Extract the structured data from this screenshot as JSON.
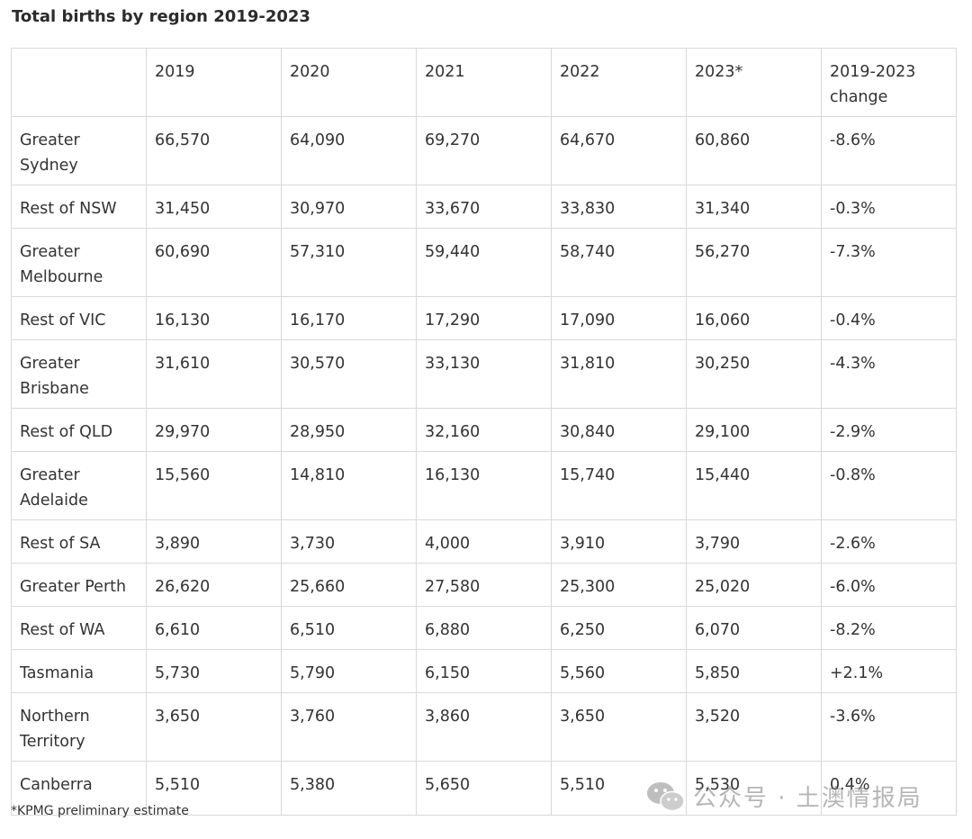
{
  "title": "Total births by region 2019-2023",
  "table": {
    "headers": [
      "",
      "2019",
      "2020",
      "2021",
      "2022",
      "2023*",
      "2019-2023 change"
    ],
    "rows": [
      [
        "Greater Sydney",
        "66,570",
        "64,090",
        "69,270",
        "64,670",
        "60,860",
        "-8.6%"
      ],
      [
        "Rest of NSW",
        "31,450",
        "30,970",
        "33,670",
        "33,830",
        "31,340",
        "-0.3%"
      ],
      [
        "Greater Melbourne",
        "60,690",
        "57,310",
        "59,440",
        "58,740",
        "56,270",
        "-7.3%"
      ],
      [
        "Rest of VIC",
        "16,130",
        "16,170",
        "17,290",
        "17,090",
        "16,060",
        "-0.4%"
      ],
      [
        "Greater Brisbane",
        "31,610",
        "30,570",
        "33,130",
        "31,810",
        "30,250",
        "-4.3%"
      ],
      [
        "Rest of QLD",
        "29,970",
        "28,950",
        "32,160",
        "30,840",
        "29,100",
        "-2.9%"
      ],
      [
        "Greater Adelaide",
        "15,560",
        "14,810",
        "16,130",
        "15,740",
        "15,440",
        "-0.8%"
      ],
      [
        "Rest of SA",
        "3,890",
        "3,730",
        "4,000",
        "3,910",
        "3,790",
        "-2.6%"
      ],
      [
        "Greater Perth",
        "26,620",
        "25,660",
        "27,580",
        "25,300",
        "25,020",
        "-6.0%"
      ],
      [
        "Rest of WA",
        "6,610",
        "6,510",
        "6,880",
        "6,250",
        "6,070",
        "-8.2%"
      ],
      [
        "Tasmania",
        "5,730",
        "5,790",
        "6,150",
        "5,560",
        "5,850",
        "+2.1%"
      ],
      [
        "Northern Territory",
        "3,650",
        "3,760",
        "3,860",
        "3,650",
        "3,520",
        "-3.6%"
      ],
      [
        "Canberra",
        "5,510",
        "5,380",
        "5,650",
        "5,510",
        "5,530",
        "0.4%"
      ]
    ]
  },
  "footnote": "*KPMG preliminary estimate",
  "watermark": {
    "text": "公众号 · 土澳情报局",
    "icon": "wechat-icon"
  }
}
